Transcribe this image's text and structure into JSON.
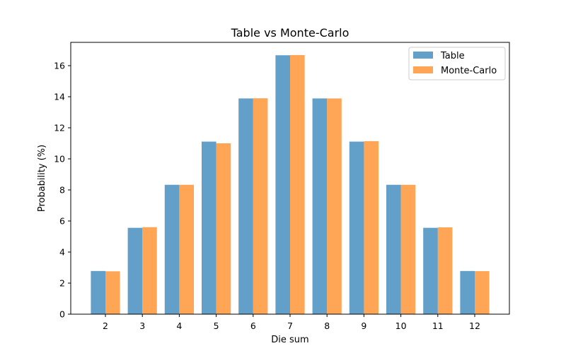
{
  "chart_data": {
    "type": "bar",
    "title": "Table vs Monte-Carlo",
    "xlabel": "Die sum",
    "ylabel": "Probability (%)",
    "categories": [
      "2",
      "3",
      "4",
      "5",
      "6",
      "7",
      "8",
      "9",
      "10",
      "11",
      "12"
    ],
    "series": [
      {
        "name": "Table",
        "color": "#1f77b4",
        "values": [
          2.78,
          5.56,
          8.33,
          11.11,
          13.89,
          16.67,
          13.89,
          11.11,
          8.33,
          5.56,
          2.78
        ]
      },
      {
        "name": "Monte-Carlo",
        "color": "#ff7f0e",
        "values": [
          2.76,
          5.6,
          8.33,
          11.0,
          13.9,
          16.68,
          13.89,
          11.14,
          8.33,
          5.59,
          2.77
        ]
      }
    ],
    "ylim": [
      0,
      17.5
    ],
    "yticks": [
      0,
      2,
      4,
      6,
      8,
      10,
      12,
      14,
      16
    ],
    "grid": false,
    "legend_position": "top-right"
  }
}
